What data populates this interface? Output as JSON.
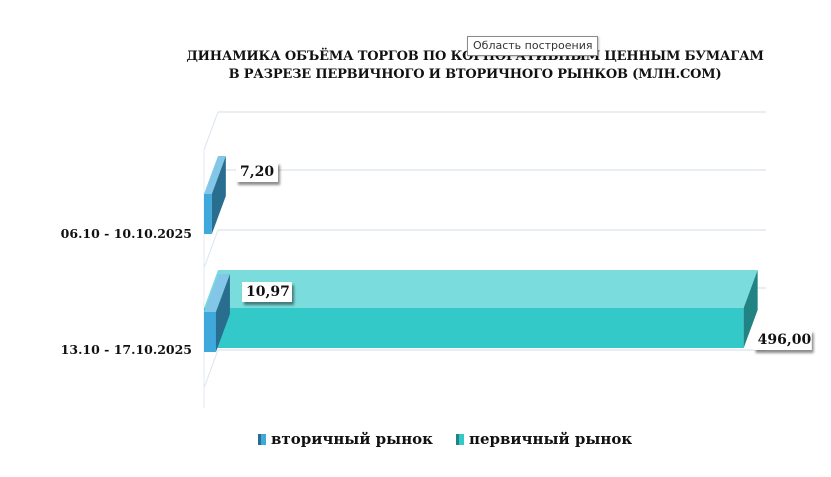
{
  "tooltip": "Область построения",
  "chart_data": {
    "type": "bar",
    "orientation": "horizontal",
    "title_line1": "ДИНАМИКА ОБЪЁМА ТОРГОВ ПО КОРПОРАТИВНЫМ ЦЕННЫМ БУМАГАМ",
    "title_line2": "В РАЗРЕЗЕ ПЕРВИЧНОГО И ВТОРИЧНОГО РЫНКОВ  (МЛН.СОМ)",
    "categories": [
      "06.10 - 10.10.2025",
      "13.10 - 17.10.2025"
    ],
    "series": [
      {
        "name": "вторичный рынок",
        "values": [
          7.2,
          10.97
        ],
        "value_labels": [
          "7,20",
          "10,97"
        ],
        "color": "#3fa9dc"
      },
      {
        "name": "первичный рынок",
        "values": [
          null,
          496.0
        ],
        "value_labels": [
          "",
          "496,00"
        ],
        "color": "#33c9c9"
      }
    ],
    "xlim": [
      0,
      500
    ],
    "grid": true,
    "legend": "bottom"
  }
}
